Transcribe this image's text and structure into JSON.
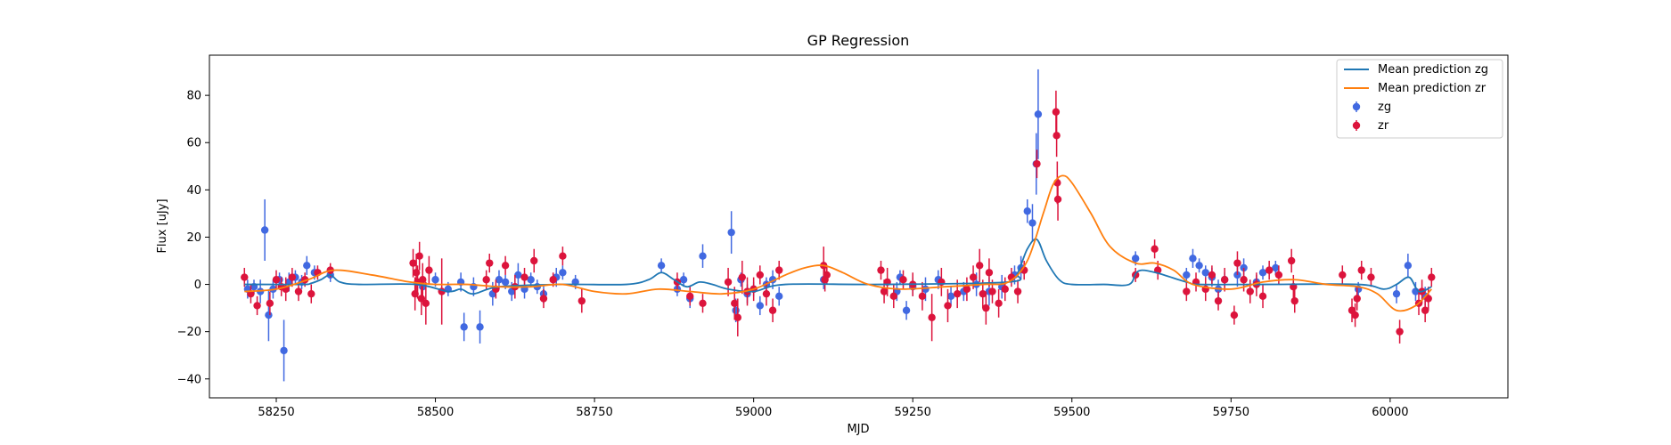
{
  "chart_data": {
    "type": "scatter",
    "title": "GP Regression",
    "xlabel": "MJD",
    "ylabel": "Flux [uJy]",
    "xlim": [
      58145,
      60185
    ],
    "ylim": [
      -48,
      97
    ],
    "xticks": [
      58250,
      58500,
      58750,
      59000,
      59250,
      59500,
      59750,
      60000
    ],
    "yticks": [
      -40,
      -20,
      0,
      20,
      40,
      60,
      80
    ],
    "grid": false,
    "legend": {
      "position": "top-right",
      "entries": [
        "Mean prediction zg",
        "Mean prediction zr",
        "zg",
        "zr"
      ]
    },
    "colors": {
      "mean_zg": "#1f77b4",
      "mean_zr": "#ff7f0e",
      "zg": "#4169e1",
      "zr": "#dc143c"
    },
    "series": [
      {
        "name": "Mean prediction zg",
        "kind": "line",
        "color": "#1f77b4",
        "x": [
          58200,
          58290,
          58305,
          58320,
          58335,
          58350,
          58380,
          58470,
          58520,
          58540,
          58560,
          58600,
          58700,
          58800,
          58835,
          58855,
          58875,
          58895,
          58915,
          58935,
          58960,
          59000,
          59050,
          59200,
          59400,
          59415,
          59430,
          59445,
          59460,
          59480,
          59500,
          59550,
          59590,
          59610,
          59680,
          59700,
          59800,
          59950,
          59990,
          60010,
          60030,
          60045,
          60065
        ],
        "y": [
          0,
          0,
          0.5,
          2,
          4,
          1,
          0,
          0,
          -3,
          -2,
          -4,
          -1,
          0,
          0,
          2,
          5,
          2,
          -1,
          1,
          0,
          -2,
          -3,
          0,
          0,
          1,
          5,
          15,
          19,
          10,
          2,
          0,
          0,
          0,
          6,
          1,
          0,
          0,
          0,
          -2,
          0,
          3,
          -3,
          -1
        ]
      },
      {
        "name": "Mean prediction zr",
        "kind": "line",
        "color": "#ff7f0e",
        "x": [
          58200,
          58250,
          58300,
          58340,
          58400,
          58460,
          58500,
          58550,
          58600,
          58650,
          58700,
          58750,
          58800,
          58850,
          58900,
          58950,
          59000,
          59050,
          59080,
          59110,
          59140,
          59180,
          59230,
          59300,
          59360,
          59400,
          59430,
          59455,
          59470,
          59485,
          59500,
          59530,
          59560,
          59600,
          59630,
          59660,
          59690,
          59750,
          59800,
          59850,
          59900,
          59950,
          59980,
          60010,
          60040,
          60065
        ],
        "y": [
          -3,
          -2,
          2,
          6,
          4,
          1,
          0,
          0,
          -1,
          -1,
          0,
          -3,
          -4,
          -2,
          -3,
          -4,
          -2,
          4,
          7,
          8,
          5,
          0,
          -2,
          -1,
          0,
          1,
          10,
          30,
          42,
          46,
          43,
          30,
          16,
          9,
          9,
          6,
          0,
          -2,
          1,
          2,
          0,
          -1,
          -4,
          -11,
          -9,
          -2
        ]
      },
      {
        "name": "zg",
        "kind": "scatter",
        "color": "#4169e1",
        "points": [
          [
            58205,
            -2,
            4
          ],
          [
            58215,
            -1,
            3
          ],
          [
            58225,
            -3,
            5
          ],
          [
            58232,
            23,
            13
          ],
          [
            58238,
            -13,
            11
          ],
          [
            58245,
            -2,
            4
          ],
          [
            58255,
            2,
            3
          ],
          [
            58262,
            -28,
            13
          ],
          [
            58270,
            1,
            4
          ],
          [
            58280,
            3,
            3
          ],
          [
            58290,
            1,
            3
          ],
          [
            58298,
            8,
            4
          ],
          [
            58310,
            5,
            3
          ],
          [
            58335,
            4,
            3
          ],
          [
            58480,
            -1,
            4
          ],
          [
            58500,
            2,
            3
          ],
          [
            58520,
            -2,
            3
          ],
          [
            58540,
            1,
            4
          ],
          [
            58545,
            -18,
            6
          ],
          [
            58560,
            -1,
            4
          ],
          [
            58570,
            -18,
            7
          ],
          [
            58590,
            -4,
            5
          ],
          [
            58600,
            2,
            4
          ],
          [
            58610,
            1,
            3
          ],
          [
            58620,
            -3,
            4
          ],
          [
            58630,
            4,
            5
          ],
          [
            58640,
            -2,
            4
          ],
          [
            58650,
            2,
            3
          ],
          [
            58660,
            -1,
            3
          ],
          [
            58670,
            -4,
            4
          ],
          [
            58690,
            3,
            4
          ],
          [
            58700,
            5,
            3
          ],
          [
            58720,
            1,
            3
          ],
          [
            58855,
            8,
            3
          ],
          [
            58880,
            -2,
            3
          ],
          [
            58890,
            2,
            3
          ],
          [
            58900,
            -6,
            4
          ],
          [
            58920,
            12,
            5
          ],
          [
            58965,
            22,
            9
          ],
          [
            58972,
            -11,
            5
          ],
          [
            58980,
            2,
            3
          ],
          [
            58990,
            -4,
            4
          ],
          [
            59000,
            -2,
            3
          ],
          [
            59010,
            -9,
            4
          ],
          [
            59020,
            0,
            3
          ],
          [
            59030,
            2,
            4
          ],
          [
            59040,
            -5,
            4
          ],
          [
            59110,
            2,
            4
          ],
          [
            59225,
            -3,
            4
          ],
          [
            59230,
            3,
            3
          ],
          [
            59240,
            -11,
            4
          ],
          [
            59250,
            -1,
            4
          ],
          [
            59270,
            -2,
            5
          ],
          [
            59290,
            2,
            4
          ],
          [
            59310,
            -5,
            4
          ],
          [
            59330,
            -3,
            4
          ],
          [
            59350,
            0,
            5
          ],
          [
            59370,
            -3,
            6
          ],
          [
            59390,
            -1,
            5
          ],
          [
            59410,
            4,
            4
          ],
          [
            59420,
            7,
            5
          ],
          [
            59430,
            31,
            5
          ],
          [
            59438,
            26,
            8
          ],
          [
            59444,
            51,
            13
          ],
          [
            59447,
            72,
            19
          ],
          [
            59600,
            11,
            3
          ],
          [
            59680,
            4,
            3
          ],
          [
            59690,
            11,
            4
          ],
          [
            59700,
            8,
            3
          ],
          [
            59710,
            5,
            3
          ],
          [
            59720,
            3,
            4
          ],
          [
            59730,
            -2,
            4
          ],
          [
            59740,
            2,
            3
          ],
          [
            59760,
            4,
            5
          ],
          [
            59770,
            7,
            4
          ],
          [
            59790,
            1,
            3
          ],
          [
            59800,
            5,
            3
          ],
          [
            59820,
            7,
            3
          ],
          [
            59950,
            -2,
            3
          ],
          [
            60010,
            -4,
            4
          ],
          [
            60028,
            8,
            5
          ],
          [
            60040,
            -3,
            4
          ],
          [
            60055,
            -5,
            4
          ]
        ]
      },
      {
        "name": "zr",
        "kind": "scatter",
        "color": "#dc143c",
        "points": [
          [
            58200,
            3,
            4
          ],
          [
            58210,
            -4,
            4
          ],
          [
            58220,
            -9,
            4
          ],
          [
            58240,
            -8,
            5
          ],
          [
            58250,
            2,
            4
          ],
          [
            58258,
            -1,
            4
          ],
          [
            58265,
            -2,
            5
          ],
          [
            58275,
            3,
            4
          ],
          [
            58285,
            -3,
            4
          ],
          [
            58295,
            2,
            3
          ],
          [
            58305,
            -4,
            4
          ],
          [
            58315,
            5,
            3
          ],
          [
            58335,
            6,
            3
          ],
          [
            58465,
            9,
            6
          ],
          [
            58468,
            -4,
            7
          ],
          [
            58470,
            5,
            8
          ],
          [
            58472,
            1,
            7
          ],
          [
            58475,
            12,
            6
          ],
          [
            58478,
            -6,
            7
          ],
          [
            58480,
            2,
            7
          ],
          [
            58485,
            -8,
            9
          ],
          [
            58490,
            6,
            6
          ],
          [
            58510,
            -3,
            14
          ],
          [
            58580,
            2,
            4
          ],
          [
            58585,
            9,
            4
          ],
          [
            58595,
            -2,
            4
          ],
          [
            58610,
            8,
            4
          ],
          [
            58625,
            -1,
            5
          ],
          [
            58640,
            3,
            4
          ],
          [
            58655,
            10,
            5
          ],
          [
            58670,
            -6,
            4
          ],
          [
            58685,
            2,
            3
          ],
          [
            58700,
            12,
            4
          ],
          [
            58730,
            -7,
            5
          ],
          [
            58880,
            1,
            4
          ],
          [
            58900,
            -5,
            4
          ],
          [
            58920,
            -8,
            4
          ],
          [
            58960,
            1,
            6
          ],
          [
            58970,
            -8,
            7
          ],
          [
            58975,
            -14,
            8
          ],
          [
            58982,
            3,
            7
          ],
          [
            58990,
            -3,
            6
          ],
          [
            59000,
            -2,
            5
          ],
          [
            59010,
            4,
            4
          ],
          [
            59020,
            -4,
            5
          ],
          [
            59030,
            -11,
            5
          ],
          [
            59040,
            6,
            4
          ],
          [
            59110,
            8,
            8
          ],
          [
            59112,
            2,
            5
          ],
          [
            59115,
            4,
            4
          ],
          [
            59200,
            6,
            4
          ],
          [
            59205,
            -3,
            5
          ],
          [
            59210,
            1,
            6
          ],
          [
            59220,
            -5,
            5
          ],
          [
            59235,
            2,
            4
          ],
          [
            59250,
            0,
            5
          ],
          [
            59265,
            -5,
            6
          ],
          [
            59280,
            -14,
            10
          ],
          [
            59295,
            1,
            6
          ],
          [
            59305,
            -9,
            7
          ],
          [
            59320,
            -4,
            6
          ],
          [
            59335,
            -2,
            5
          ],
          [
            59345,
            3,
            5
          ],
          [
            59355,
            8,
            7
          ],
          [
            59360,
            -4,
            6
          ],
          [
            59365,
            -10,
            7
          ],
          [
            59370,
            5,
            6
          ],
          [
            59375,
            -3,
            5
          ],
          [
            59385,
            -8,
            6
          ],
          [
            59395,
            -2,
            5
          ],
          [
            59405,
            3,
            4
          ],
          [
            59415,
            -3,
            5
          ],
          [
            59425,
            6,
            4
          ],
          [
            59445,
            51,
            6
          ],
          [
            59475,
            73,
            9
          ],
          [
            59476,
            63,
            9
          ],
          [
            59477,
            43,
            9
          ],
          [
            59478,
            36,
            9
          ],
          [
            59600,
            4,
            3
          ],
          [
            59630,
            15,
            4
          ],
          [
            59635,
            6,
            4
          ],
          [
            59680,
            -3,
            4
          ],
          [
            59695,
            1,
            4
          ],
          [
            59710,
            -2,
            5
          ],
          [
            59720,
            4,
            4
          ],
          [
            59730,
            -7,
            4
          ],
          [
            59740,
            2,
            5
          ],
          [
            59755,
            -13,
            4
          ],
          [
            59760,
            9,
            5
          ],
          [
            59770,
            2,
            5
          ],
          [
            59780,
            -3,
            5
          ],
          [
            59790,
            0,
            5
          ],
          [
            59800,
            -5,
            5
          ],
          [
            59810,
            6,
            4
          ],
          [
            59825,
            4,
            4
          ],
          [
            59845,
            10,
            5
          ],
          [
            59848,
            -1,
            5
          ],
          [
            59850,
            -7,
            5
          ],
          [
            59925,
            4,
            4
          ],
          [
            59940,
            -11,
            5
          ],
          [
            59945,
            -13,
            5
          ],
          [
            59948,
            -6,
            5
          ],
          [
            59955,
            6,
            4
          ],
          [
            59970,
            3,
            4
          ],
          [
            60015,
            -20,
            5
          ],
          [
            60045,
            -8,
            5
          ],
          [
            60050,
            -3,
            5
          ],
          [
            60055,
            -11,
            5
          ],
          [
            60060,
            -6,
            5
          ],
          [
            60065,
            3,
            4
          ]
        ]
      }
    ]
  }
}
